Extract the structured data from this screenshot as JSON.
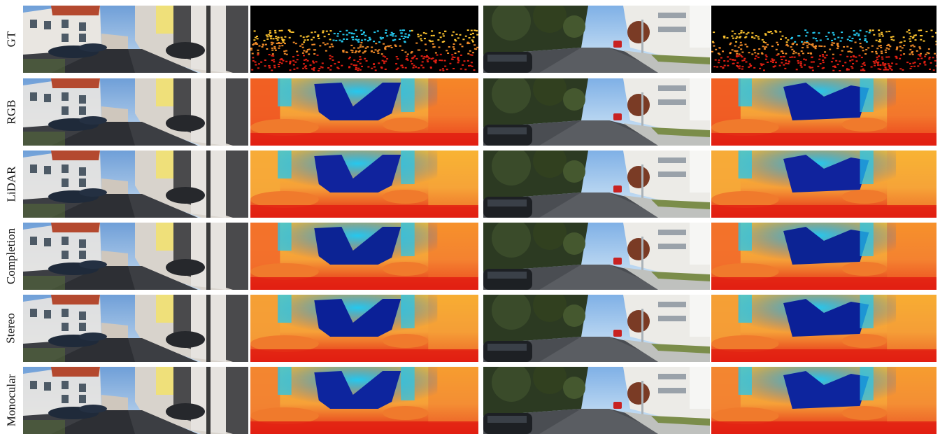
{
  "rows": [
    {
      "label": "GT",
      "gt": true,
      "far": "#f4f7f8",
      "blob": "#0e2ca8",
      "sky": "#f1662a"
    },
    {
      "label": "RGB",
      "gt": false,
      "far": "#ffffff",
      "blob": "#0b1f9a",
      "sky": "#f05522"
    },
    {
      "label": "LiDAR",
      "gt": false,
      "far": "#f4f4f4",
      "blob": "#10239d",
      "sky": "#f6a838"
    },
    {
      "label": "Completion",
      "gt": false,
      "far": "#f8f8f8",
      "blob": "#0c2394",
      "sky": "#f26a2a"
    },
    {
      "label": "Stereo",
      "gt": false,
      "far": "#f6f6f6",
      "blob": "#0b2097",
      "sky": "#f49c36"
    },
    {
      "label": "Monocular",
      "gt": false,
      "far": "#f2f2f2",
      "blob": "#0d259e",
      "sky": "#f28031"
    }
  ],
  "colors": {
    "depth_near": "#e21f12",
    "depth_mid": "#fbc12e",
    "depth_far": "#1f5bd8",
    "depth_cyan": "#25c8ee",
    "gt_background": "#000000"
  },
  "icons": {
    "scene": "street-scene-thumbnail",
    "depth": "depth-map-thumbnail"
  }
}
